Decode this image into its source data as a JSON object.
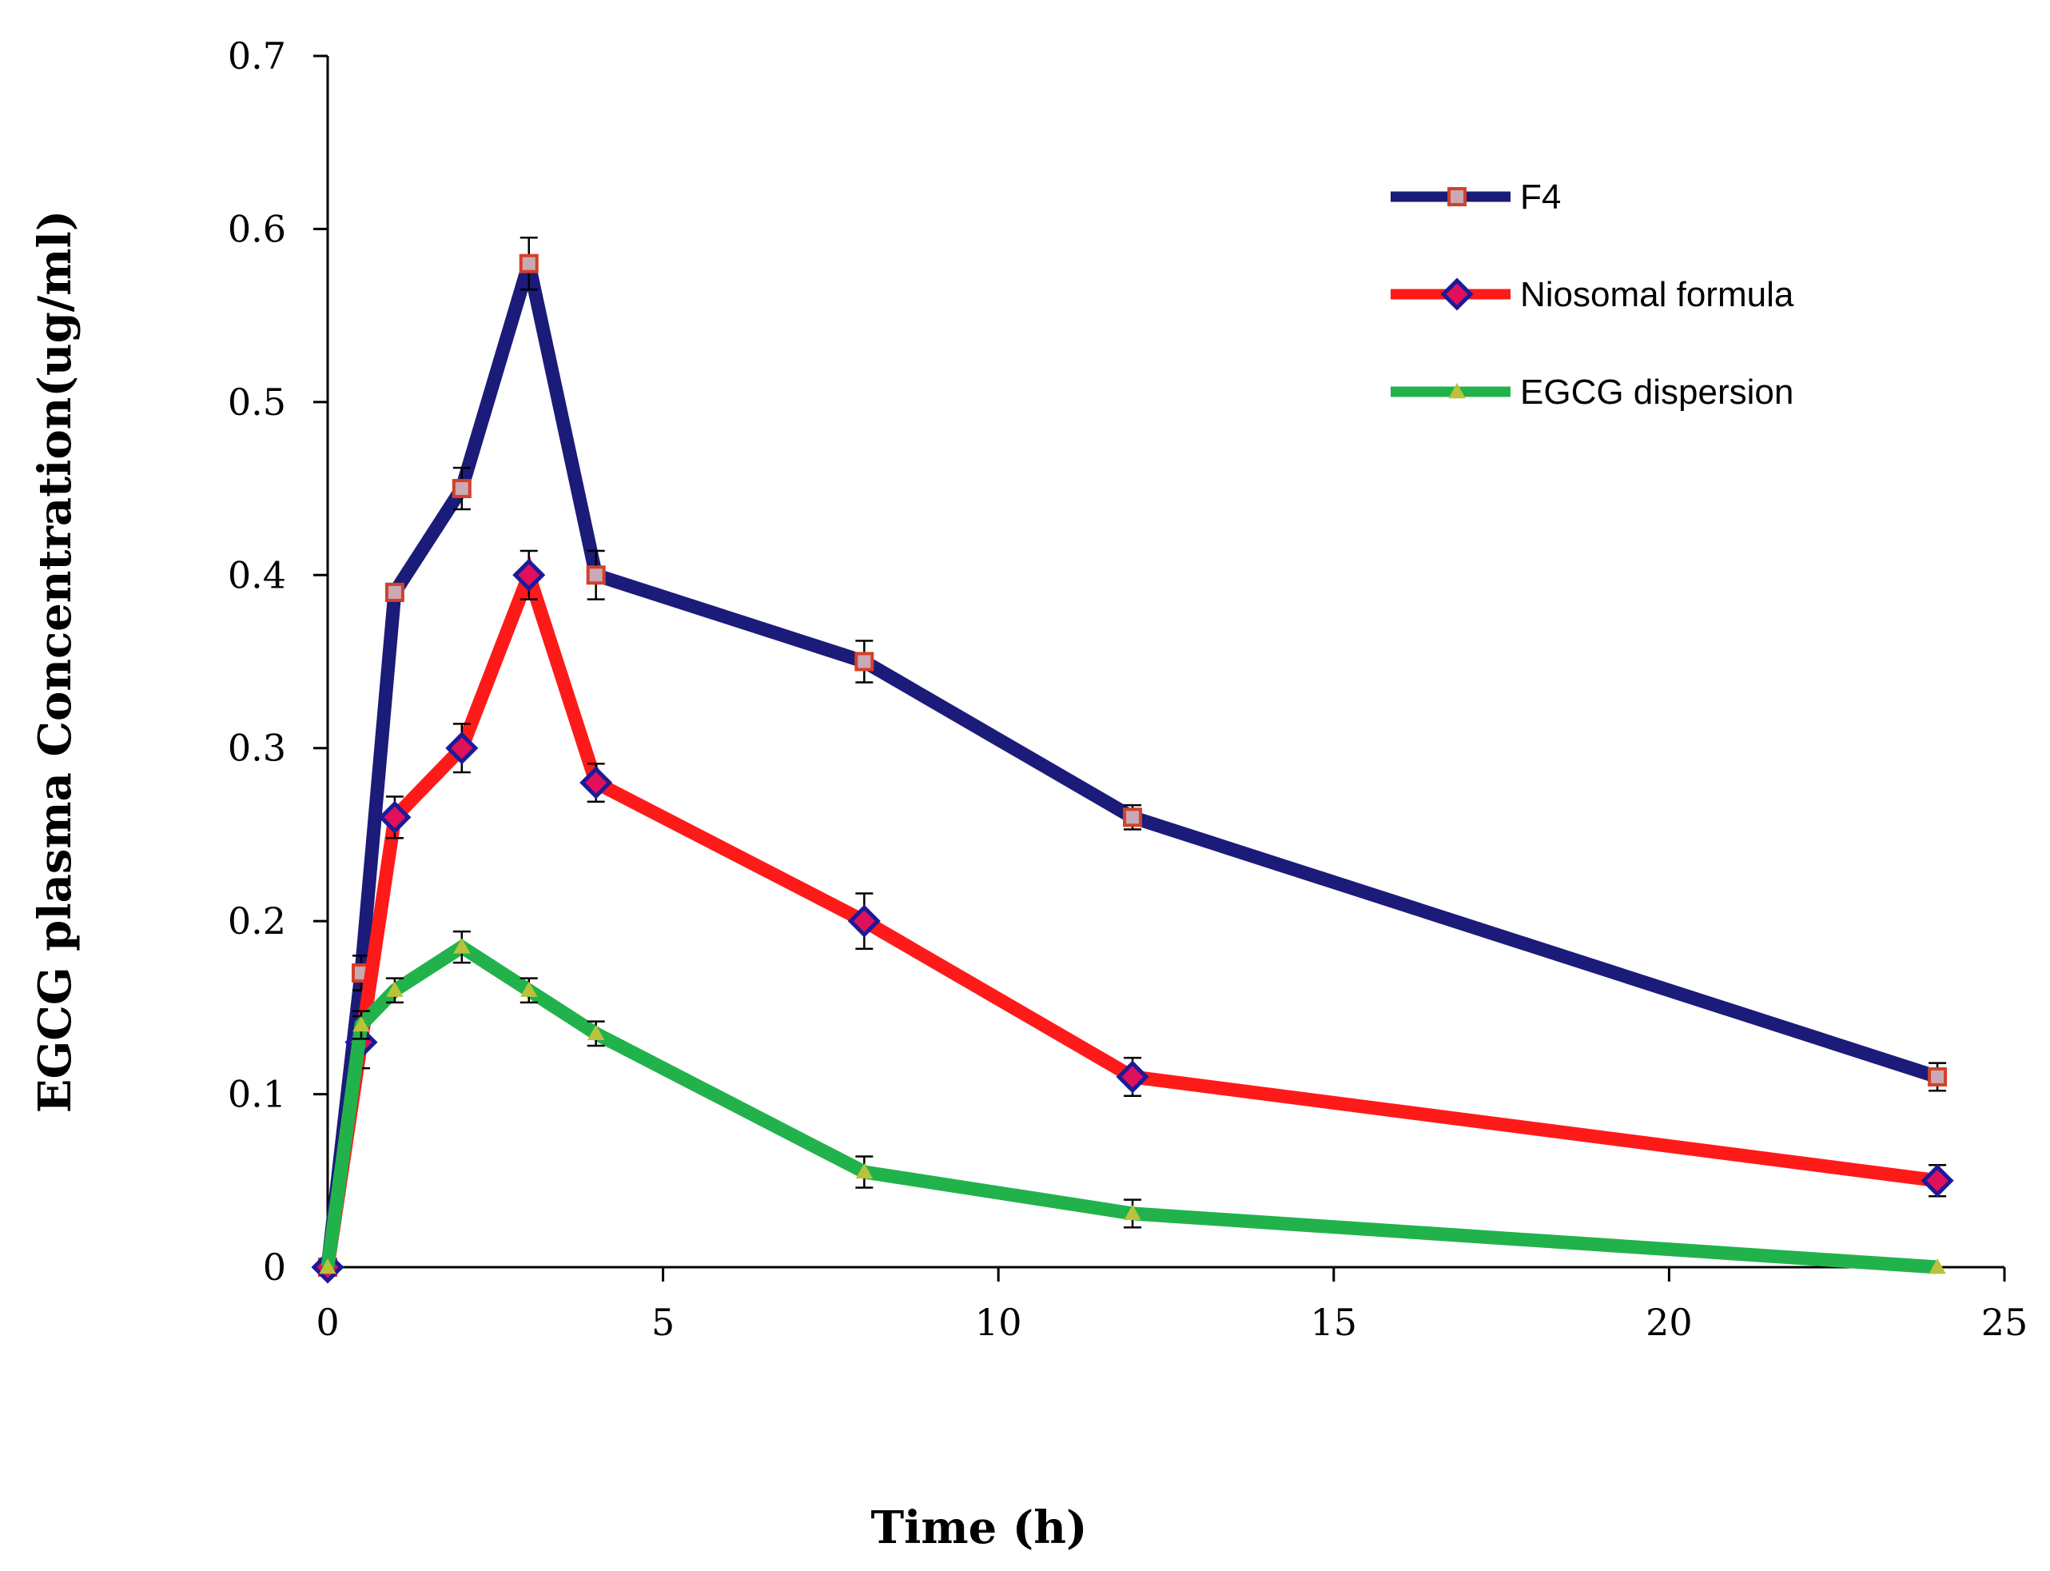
{
  "chart_data": {
    "type": "line",
    "title": "",
    "xlabel": "Time (h)",
    "ylabel": "EGCG plasma Concentration(ug/ml)",
    "xlim": [
      0,
      25
    ],
    "ylim": [
      0,
      0.7
    ],
    "xticks": [
      "0",
      "5",
      "10",
      "15",
      "20",
      "25"
    ],
    "yticks": [
      "0",
      "0.1",
      "0.2",
      "0.3",
      "0.4",
      "0.5",
      "0.6",
      "0.7"
    ],
    "grid": false,
    "legend_position": "top-right",
    "x": [
      0,
      0.5,
      1,
      2,
      3,
      4,
      8,
      12,
      24
    ],
    "series": [
      {
        "name": "F4",
        "color": "#1b1b7a",
        "marker": "square",
        "marker_fill": "#c9a9b4",
        "marker_edge": "#d4402a",
        "values": [
          0,
          0.17,
          0.39,
          0.45,
          0.58,
          0.4,
          0.35,
          0.26,
          0.11
        ],
        "errors": [
          0,
          0.01,
          0.005,
          0.012,
          0.015,
          0.014,
          0.012,
          0.007,
          0.008
        ]
      },
      {
        "name": "Niosomal formula",
        "color": "#ff1a1a",
        "marker": "diamond",
        "marker_fill": "#e0105a",
        "marker_edge": "#1b1b9a",
        "values": [
          0,
          0.13,
          0.26,
          0.3,
          0.4,
          0.28,
          0.2,
          0.11,
          0.05
        ],
        "errors": [
          0,
          0.015,
          0.012,
          0.014,
          0.014,
          0.011,
          0.016,
          0.011,
          0.009
        ]
      },
      {
        "name": "EGCG dispersion",
        "color": "#22b24c",
        "marker": "triangle",
        "marker_fill": "#b9c23a",
        "marker_edge": "#b9c23a",
        "values": [
          0,
          0.14,
          0.16,
          0.185,
          0.16,
          0.135,
          0.055,
          0.031,
          0
        ],
        "errors": [
          0,
          0.008,
          0.007,
          0.009,
          0.007,
          0.007,
          0.009,
          0.008,
          0
        ]
      }
    ]
  }
}
